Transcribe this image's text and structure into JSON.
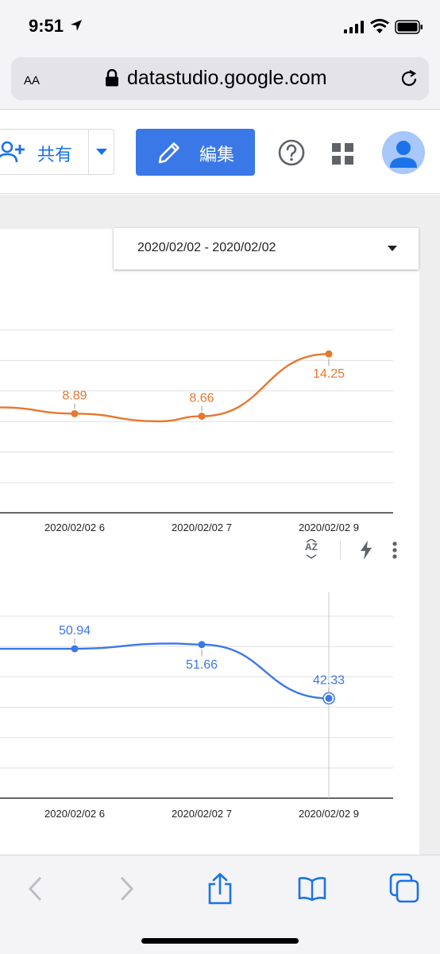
{
  "status_bar": {
    "time": "9:51"
  },
  "browser": {
    "text_size_label": "AA",
    "url": "datastudio.google.com"
  },
  "toolbar": {
    "share_label": "共有",
    "edit_label": "編集"
  },
  "report": {
    "date_range": "2020/02/02 - 2020/02/02"
  },
  "colors": {
    "accent": "#3b78e7",
    "series_orange": "#e8772e",
    "series_blue": "#3b78e7"
  },
  "chart_data": [
    {
      "type": "line",
      "categories": [
        "2020/02/02 6",
        "2020/02/02 7",
        "2020/02/02 9"
      ],
      "series": [
        {
          "values": [
            8.89,
            8.66,
            14.25
          ],
          "data_labels": [
            "8.89",
            "8.66",
            "14.25"
          ],
          "color": "#e8772e"
        }
      ],
      "grid": true,
      "partially_visible": true
    },
    {
      "type": "line",
      "categories": [
        "2020/02/02 6",
        "2020/02/02 7",
        "2020/02/02 9"
      ],
      "series": [
        {
          "values": [
            50.94,
            51.66,
            42.33
          ],
          "data_labels": [
            "50.94",
            "51.66",
            "42.33"
          ],
          "color": "#3b78e7"
        }
      ],
      "grid": true,
      "partially_visible": true,
      "highlighted_point": "2020/02/02 9"
    }
  ]
}
